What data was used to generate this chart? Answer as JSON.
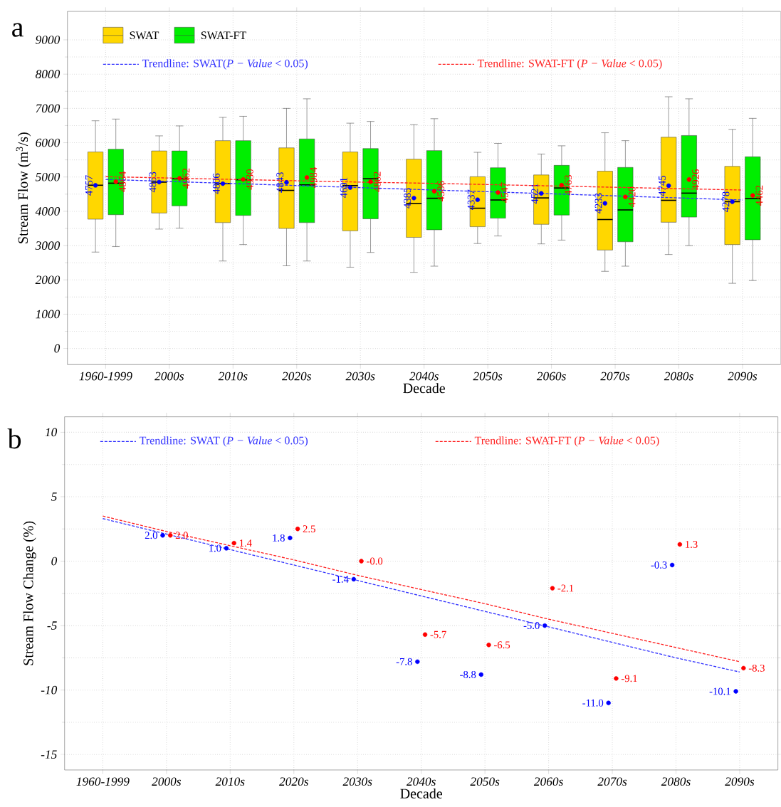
{
  "chart_data": [
    {
      "type": "box",
      "title": "a",
      "xlabel": "Decade",
      "ylabel": "Stream Flow (m$^{3}$/s)",
      "categories": [
        "1960-1999",
        "2000s",
        "2010s",
        "2020s",
        "2030s",
        "2040s",
        "2050s",
        "2060s",
        "2070s",
        "2080s",
        "2090s"
      ],
      "ylim": [
        -470,
        9830
      ],
      "yticks": [
        0,
        1000,
        2000,
        3000,
        4000,
        5000,
        6000,
        7000,
        8000,
        9000
      ],
      "grid": true,
      "legend": "top left",
      "series": [
        {
          "name": "SWAT",
          "color": "#ffd700",
          "boxes": [
            {
              "low": 2810,
              "q1": 3770,
              "median": 4760,
              "q3": 5730,
              "high": 6640
            },
            {
              "low": 3480,
              "q1": 3950,
              "median": 4850,
              "q3": 5760,
              "high": 6200
            },
            {
              "low": 2550,
              "q1": 3670,
              "median": 4810,
              "q3": 6060,
              "high": 6740
            },
            {
              "low": 2410,
              "q1": 3500,
              "median": 4610,
              "q3": 5850,
              "high": 7000
            },
            {
              "low": 2370,
              "q1": 3430,
              "median": 4750,
              "q3": 5730,
              "high": 6570
            },
            {
              "low": 2220,
              "q1": 3240,
              "median": 4230,
              "q3": 5520,
              "high": 6530
            },
            {
              "low": 3060,
              "q1": 3550,
              "median": 4090,
              "q3": 5010,
              "high": 5720
            },
            {
              "low": 3050,
              "q1": 3620,
              "median": 4390,
              "q3": 5060,
              "high": 5670
            },
            {
              "low": 2250,
              "q1": 2870,
              "median": 3760,
              "q3": 5170,
              "high": 6290
            },
            {
              "low": 2740,
              "q1": 3680,
              "median": 4320,
              "q3": 6160,
              "high": 7340
            },
            {
              "low": 1900,
              "q1": 3030,
              "median": 4280,
              "q3": 5310,
              "high": 6390
            }
          ]
        },
        {
          "name": "SWAT-FT",
          "color": "#00ee00",
          "boxes": [
            {
              "low": 2970,
              "q1": 3900,
              "median": 4820,
              "q3": 5810,
              "high": 6690
            },
            {
              "low": 3510,
              "q1": 4160,
              "median": 4950,
              "q3": 5760,
              "high": 6490
            },
            {
              "low": 3030,
              "q1": 3880,
              "median": 4920,
              "q3": 6060,
              "high": 6770
            },
            {
              "low": 2550,
              "q1": 3670,
              "median": 4770,
              "q3": 6110,
              "high": 7280
            },
            {
              "low": 2800,
              "q1": 3780,
              "median": 4950,
              "q3": 5830,
              "high": 6620
            },
            {
              "low": 2400,
              "q1": 3460,
              "median": 4380,
              "q3": 5770,
              "high": 6700
            },
            {
              "low": 3280,
              "q1": 3800,
              "median": 4330,
              "q3": 5270,
              "high": 5980
            },
            {
              "low": 3160,
              "q1": 3890,
              "median": 4680,
              "q3": 5340,
              "high": 5910
            },
            {
              "low": 2400,
              "q1": 3110,
              "median": 4040,
              "q3": 5280,
              "high": 6060
            },
            {
              "low": 3000,
              "q1": 3830,
              "median": 4530,
              "q3": 6210,
              "high": 7280
            },
            {
              "low": 1980,
              "q1": 3170,
              "median": 4370,
              "q3": 5590,
              "high": 6710
            }
          ]
        },
        {
          "type": "scatter",
          "marker": "circle",
          "color": "#0000ff",
          "x": [
            "1960-1999",
            "2000s",
            "2010s",
            "2020s",
            "2030s",
            "2040s",
            "2050s",
            "2060s",
            "2070s",
            "2080s",
            "2090s"
          ],
          "values": [
            4757,
            4853,
            4806,
            4843,
            4691,
            4385,
            4337,
            4521,
            4233,
            4745,
            4278
          ],
          "value_labels": [
            "4757",
            "4853",
            "4806",
            "4843",
            "4691",
            "4385",
            "4337",
            "4521",
            "4233",
            "4745",
            "4278"
          ]
        },
        {
          "type": "scatter",
          "marker": "circle",
          "color": "#ff0000",
          "x": [
            "1960-1999",
            "2000s",
            "2010s",
            "2020s",
            "2030s",
            "2040s",
            "2050s",
            "2060s",
            "2070s",
            "2080s",
            "2090s"
          ],
          "values": [
            4864,
            4962,
            4930,
            4984,
            4862,
            4586,
            4547,
            4763,
            4420,
            4926,
            4462
          ],
          "value_labels": [
            "4864",
            "4962",
            "4930",
            "4984",
            "4862",
            "4586",
            "4547",
            "4763",
            "4420",
            "4926",
            "4462"
          ]
        },
        {
          "type": "line",
          "name": "Trendline: SWAT(*P − Value* < 0.05)",
          "color": "#3333ff",
          "line_style": "dashed",
          "marker": "none",
          "values": [
            4930,
            4870,
            4810,
            4750,
            4690,
            4630,
            4570,
            4510,
            4450,
            4390,
            4330
          ]
        },
        {
          "type": "line",
          "name": "Trendline: SWAT-FT (*P − Value* < 0.05)",
          "color": "#ff2222",
          "line_style": "dashed",
          "marker": "none",
          "values": [
            5010,
            4970,
            4930,
            4890,
            4850,
            4820,
            4780,
            4740,
            4700,
            4660,
            4620
          ]
        }
      ]
    },
    {
      "type": "scatter",
      "title": "b",
      "xlabel": "Decade",
      "ylabel": "Stream Flow Change  (%)",
      "categories": [
        "1960-1999",
        "2000s",
        "2010s",
        "2020s",
        "2030s",
        "2040s",
        "2050s",
        "2060s",
        "2070s",
        "2080s",
        "2090s"
      ],
      "ylim": [
        -16.2,
        11.2
      ],
      "yticks": [
        -15,
        -10,
        -5,
        0,
        5,
        10
      ],
      "grid": true,
      "legend": "top left",
      "series": [
        {
          "type": "scatter",
          "marker": "circle",
          "color": "#0000ff",
          "values": [
            null,
            2.0,
            1.0,
            1.8,
            -1.4,
            -7.8,
            -8.8,
            -5.0,
            -11.0,
            -0.3,
            -10.1
          ],
          "value_labels": [
            null,
            "2.0",
            "1.0",
            "1.8",
            "-1.4",
            "-7.8",
            "-8.8",
            "-5.0",
            "-11.0",
            "-0.3",
            "-10.1"
          ]
        },
        {
          "type": "scatter",
          "marker": "circle",
          "color": "#ff0000",
          "values": [
            null,
            2.0,
            1.4,
            2.5,
            0.0,
            -5.7,
            -6.5,
            -2.1,
            -9.1,
            1.3,
            -8.3
          ],
          "value_labels": [
            null,
            "2.0",
            "1.4",
            "2.5",
            "-0.0",
            "-5.7",
            "-6.5",
            "-2.1",
            "-9.1",
            "1.3",
            "-8.3"
          ]
        },
        {
          "type": "line",
          "name": "Trendline: SWAT    (*P − Value* < 0.05)",
          "color": "#3333ff",
          "line_style": "dashed",
          "marker": "none",
          "values": [
            3.3,
            2.1,
            0.9,
            -0.3,
            -1.5,
            -2.7,
            -3.9,
            -5.1,
            -6.3,
            -7.5,
            -8.6
          ]
        },
        {
          "type": "line",
          "name": "Trendline: SWAT-FT    (*P − Value* < 0.05)",
          "color": "#ff2222",
          "line_style": "dashed",
          "marker": "none",
          "values": [
            3.5,
            2.3,
            1.2,
            0.1,
            -1.1,
            -2.2,
            -3.3,
            -4.5,
            -5.6,
            -6.7,
            -7.8
          ]
        }
      ]
    }
  ]
}
